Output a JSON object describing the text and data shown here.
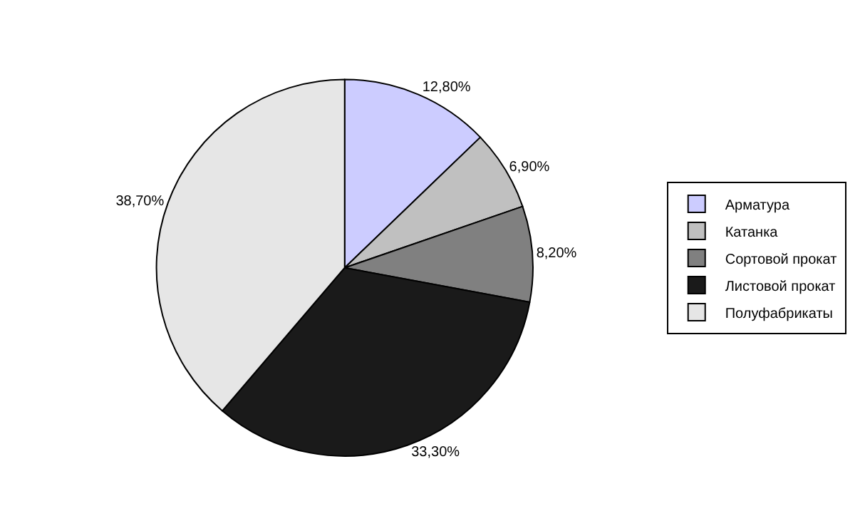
{
  "chart_data": {
    "type": "pie",
    "categories": [
      "Арматура",
      "Катанка",
      "Сортовой прокат",
      "Листовой прокат",
      "Полуфабрикаты"
    ],
    "values": [
      12.8,
      6.9,
      8.2,
      33.3,
      38.7
    ],
    "value_labels": [
      "12,80%",
      "6,90%",
      "8,20%",
      "33,30%",
      "38,70%"
    ],
    "colors": [
      "#ccccff",
      "#c0c0c0",
      "#808080",
      "#1a1a1a",
      "#e6e6e6"
    ],
    "legend": "right"
  }
}
